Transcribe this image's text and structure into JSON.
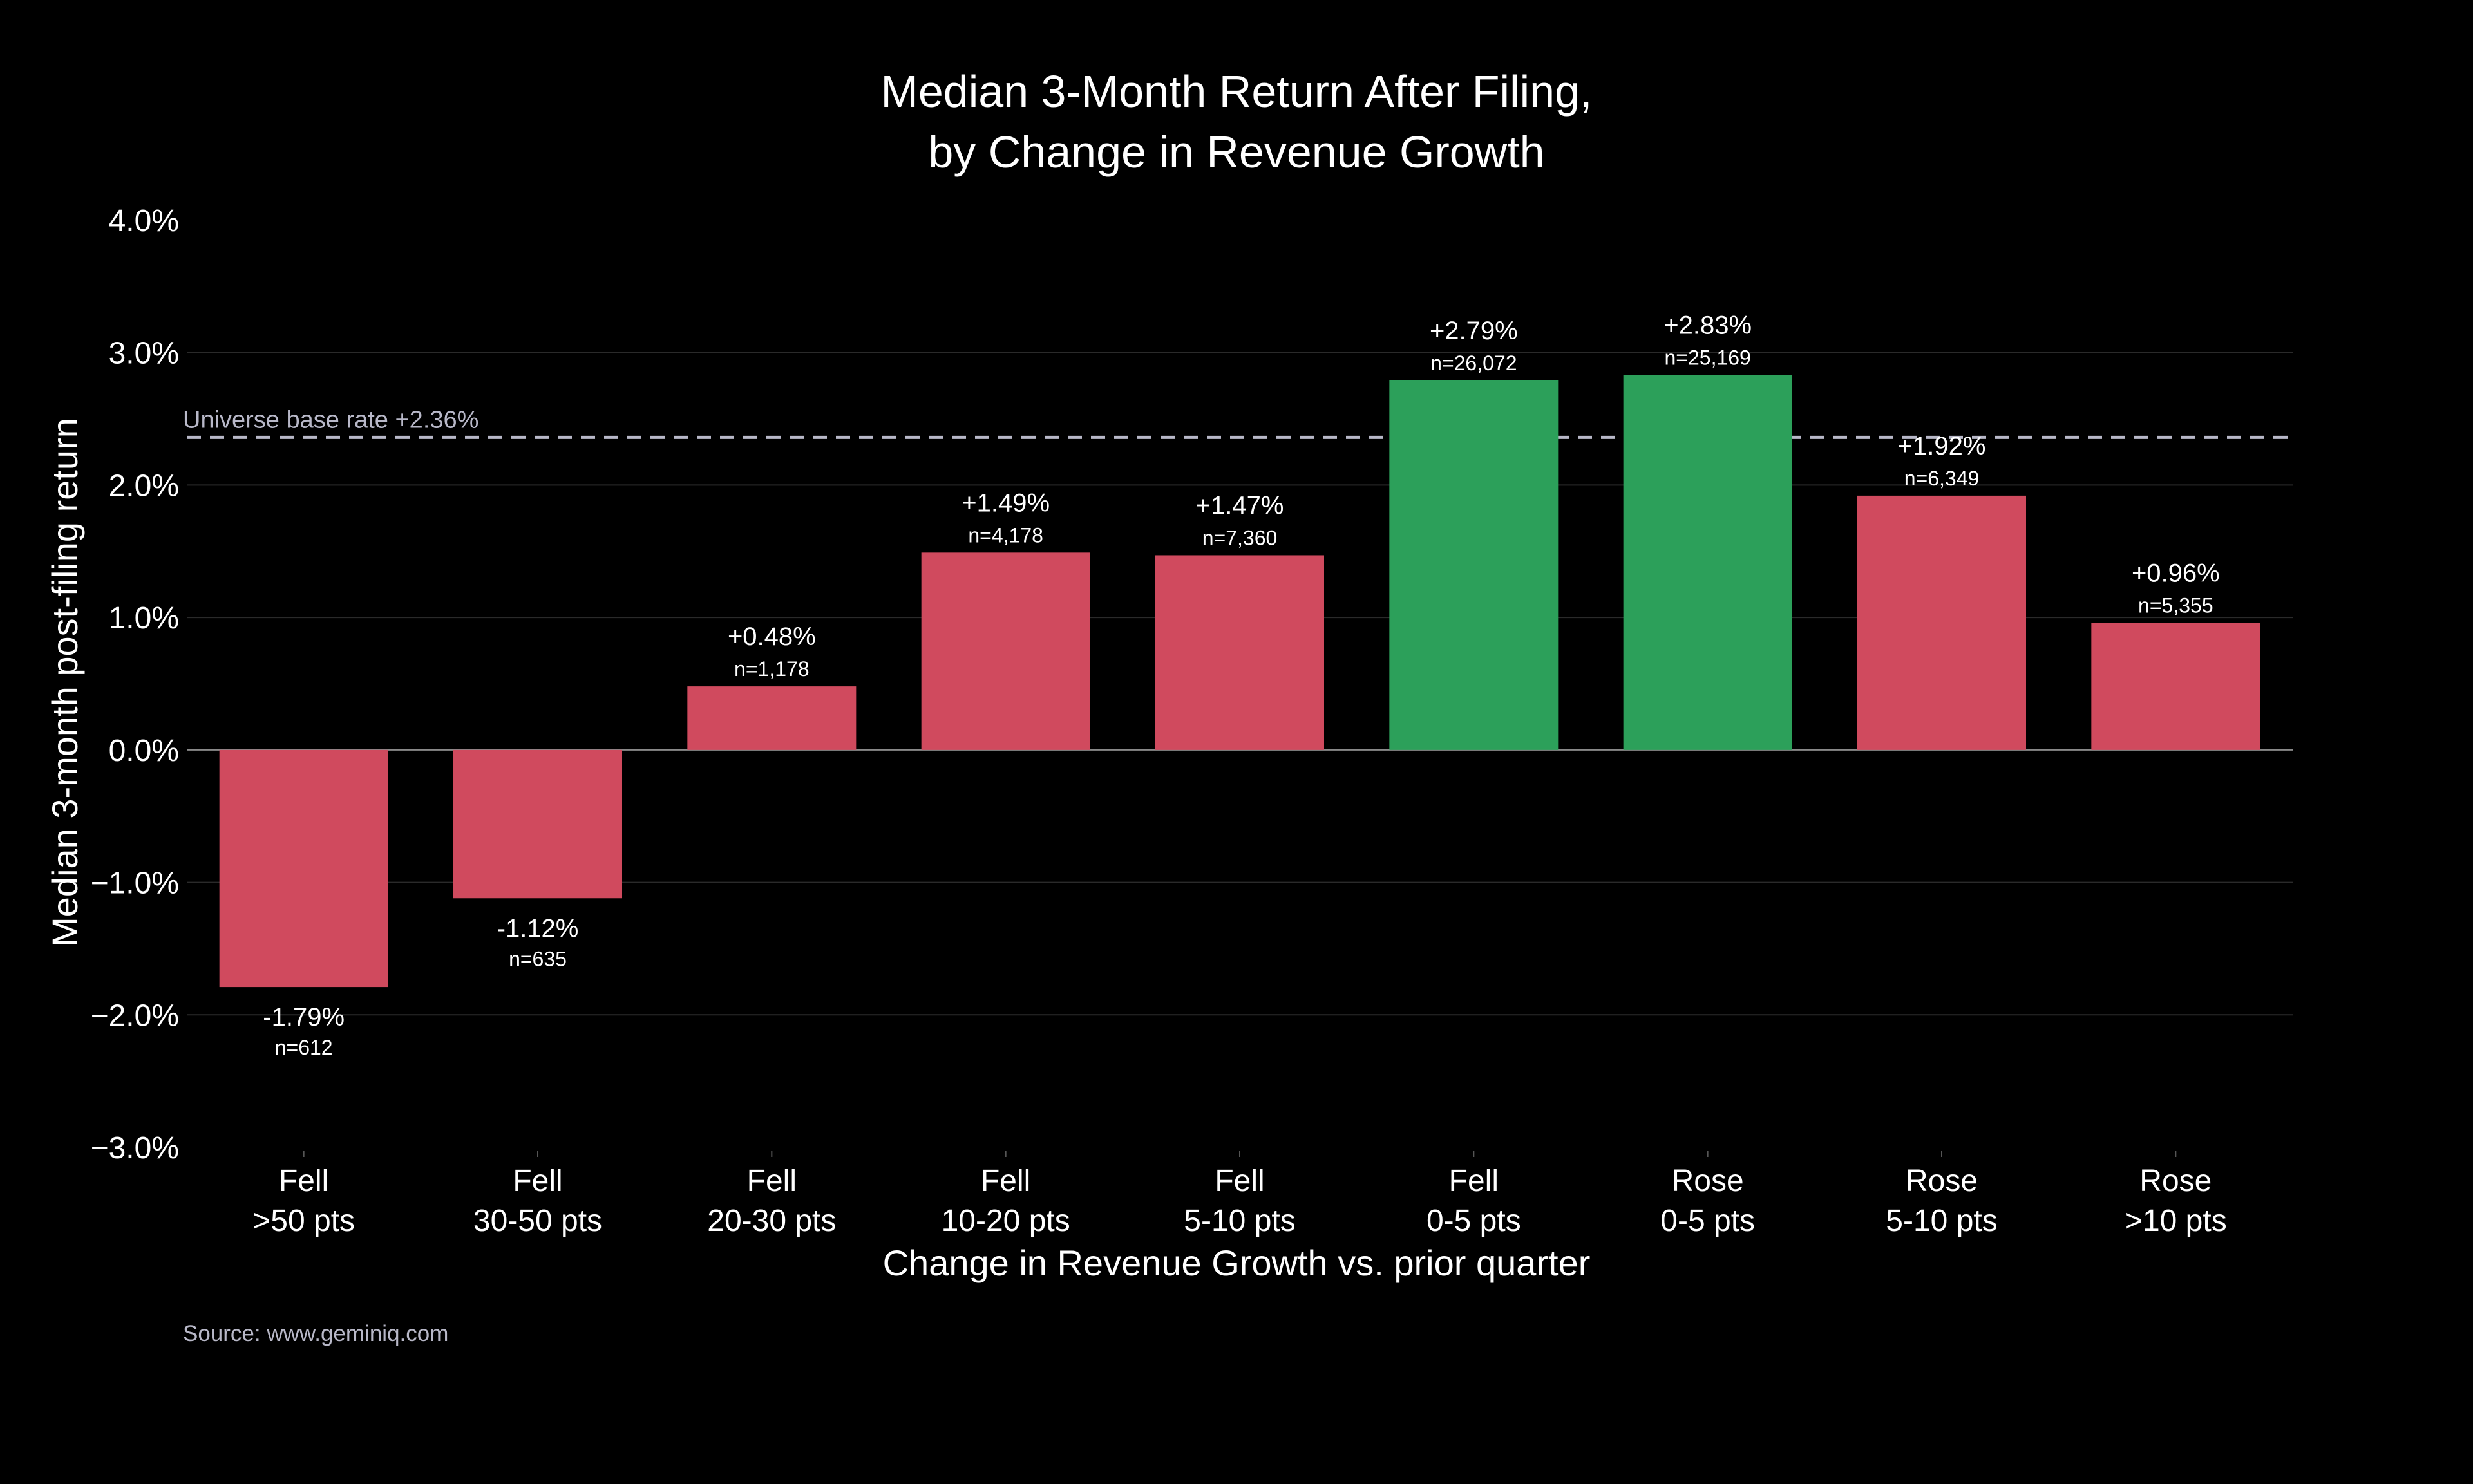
{
  "chart_data": {
    "type": "bar",
    "title": [
      "Median 3-Month Return After Filing,",
      "by Change in Revenue Growth"
    ],
    "xlabel": "Change in Revenue Growth vs. prior quarter",
    "ylabel": "Median 3-month post-filing return",
    "ylim": [
      -3.0,
      4.0
    ],
    "yticks": [
      -3.0,
      -2.0,
      -1.0,
      0.0,
      1.0,
      2.0,
      3.0,
      4.0
    ],
    "ytick_labels": [
      "−3.0%",
      "−2.0%",
      "−1.0%",
      "0.0%",
      "1.0%",
      "2.0%",
      "3.0%",
      "4.0%"
    ],
    "grid": true,
    "categories": [
      [
        "Fell",
        ">50 pts"
      ],
      [
        "Fell",
        "30-50 pts"
      ],
      [
        "Fell",
        "20-30 pts"
      ],
      [
        "Fell",
        "10-20 pts"
      ],
      [
        "Fell",
        "5-10 pts"
      ],
      [
        "Fell",
        "0-5 pts"
      ],
      [
        "Rose",
        "0-5 pts"
      ],
      [
        "Rose",
        "5-10 pts"
      ],
      [
        "Rose",
        ">10 pts"
      ]
    ],
    "values": [
      -1.79,
      -1.12,
      0.48,
      1.49,
      1.47,
      2.79,
      2.83,
      1.92,
      0.96
    ],
    "value_labels": [
      "-1.79%",
      "-1.12%",
      "+0.48%",
      "+1.49%",
      "+1.47%",
      "+2.79%",
      "+2.83%",
      "+1.92%",
      "+0.96%"
    ],
    "n_labels": [
      "n=612",
      "n=635",
      "n=1,178",
      "n=4,178",
      "n=7,360",
      "n=26,072",
      "n=25,169",
      "n=6,349",
      "n=5,355"
    ],
    "highlight": [
      false,
      false,
      false,
      false,
      false,
      true,
      true,
      false,
      false
    ],
    "bar_color": "#d04a5e",
    "highlight_color": "#2ca05a",
    "reference_line": {
      "value": 2.36,
      "label": "Universe base rate +2.36%",
      "color": "#b8b8c8"
    },
    "source": "Source: www.geminiq.com"
  }
}
